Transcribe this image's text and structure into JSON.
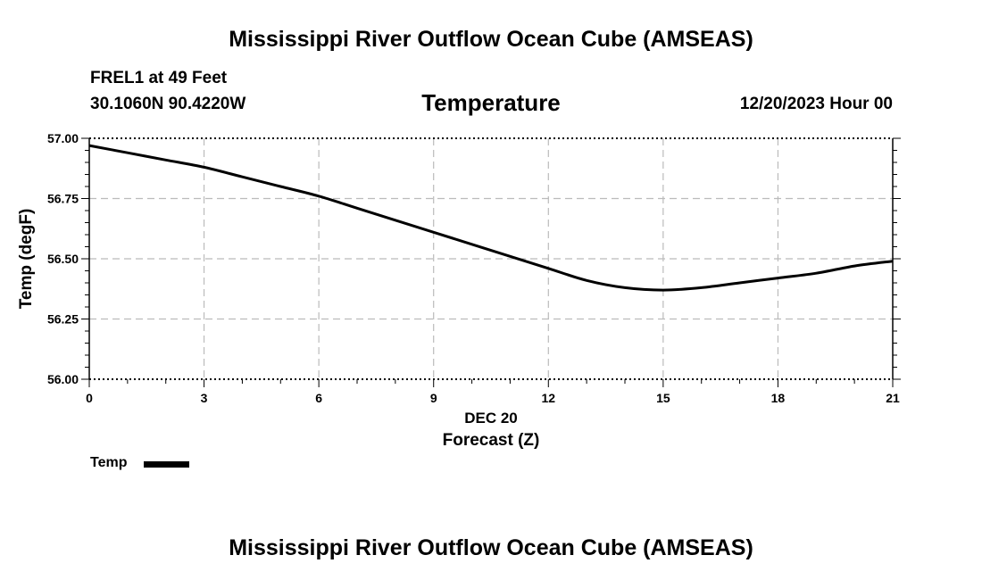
{
  "header": {
    "title": "Mississippi River Outflow Ocean Cube (AMSEAS)",
    "station": "FREL1 at 49 Feet",
    "coords": "30.1060N  90.4220W",
    "subtitle": "Temperature",
    "datetime": "12/20/2023 Hour 00"
  },
  "footer": {
    "title": "Mississippi River Outflow Ocean Cube (AMSEAS)"
  },
  "legend": {
    "label": "Temp",
    "color": "#000000"
  },
  "chart_data": {
    "type": "line",
    "title": "Temperature",
    "xlabel": "Forecast (Z)",
    "xlabel_date": "DEC 20",
    "ylabel": "Temp (degF)",
    "xlim": [
      0,
      21
    ],
    "ylim": [
      56.0,
      57.0
    ],
    "xticks": [
      0,
      3,
      6,
      9,
      12,
      15,
      18,
      21
    ],
    "yticks": [
      56.0,
      56.25,
      56.5,
      56.75,
      57.0
    ],
    "ytick_labels": [
      "56.00",
      "56.25",
      "56.50",
      "56.75",
      "57.00"
    ],
    "grid": true,
    "legend_position": "bottom-left",
    "series": [
      {
        "name": "Temp",
        "x": [
          0,
          1,
          2,
          3,
          4,
          5,
          6,
          7,
          8,
          9,
          10,
          11,
          12,
          13,
          14,
          15,
          16,
          17,
          18,
          19,
          20,
          21
        ],
        "y": [
          56.97,
          56.94,
          56.91,
          56.88,
          56.84,
          56.8,
          56.76,
          56.71,
          56.66,
          56.61,
          56.56,
          56.51,
          56.46,
          56.41,
          56.38,
          56.37,
          56.38,
          56.4,
          56.42,
          56.44,
          56.47,
          56.49
        ]
      }
    ]
  }
}
